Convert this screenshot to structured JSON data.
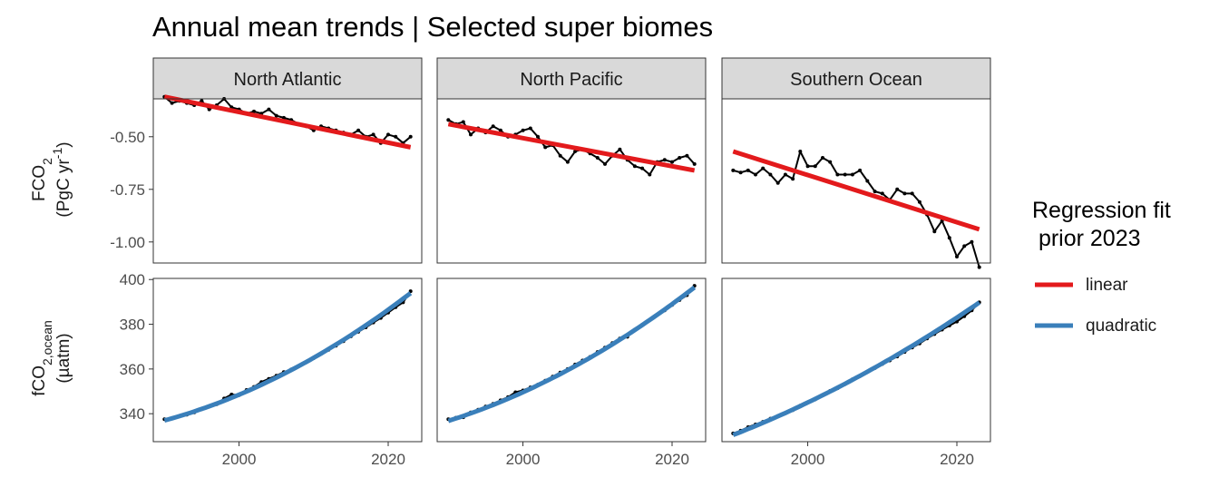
{
  "title": "Annual mean trends | Selected super biomes",
  "legend": {
    "title_line1": "Regression fit",
    "title_line2": " prior 2023",
    "position": "right",
    "items": [
      {
        "label": "linear",
        "color": "#e31a1c"
      },
      {
        "label": "quadratic",
        "color": "#3a7fba"
      }
    ]
  },
  "facets": [
    "North Atlantic",
    "North Pacific",
    "Southern Ocean"
  ],
  "rows": [
    {
      "label_main": "FCO",
      "label_sub": "2",
      "label_unit_pre": "(PgC yr",
      "label_unit_sup": "-1",
      "label_unit_post": ")"
    },
    {
      "label_main": "fCO",
      "label_sub": "2,ocean",
      "label_unit": "(µatm)"
    }
  ],
  "colors": {
    "observed": "#000000",
    "linear": "#e31a1c",
    "quadratic": "#3a7fba",
    "strip_fill": "#d9d9d9",
    "panel_border": "#333333"
  },
  "chart_data": {
    "type": "line",
    "title": "Annual mean trends | Selected super biomes",
    "grid": false,
    "x_ticks": [
      2000,
      2020
    ],
    "x_tick_labels": [
      "2000",
      "2020"
    ],
    "xlim": [
      1988.5,
      2024.5
    ],
    "panels": [
      {
        "row": 0,
        "facet": "North Atlantic",
        "ylim": [
          -1.1,
          -0.32
        ],
        "y_ticks": [
          -0.5,
          -0.75,
          -1.0
        ],
        "y_tick_labels": [
          "-0.50",
          "-0.75",
          "-1.00"
        ],
        "years": [
          1990,
          1991,
          1992,
          1993,
          1994,
          1995,
          1996,
          1997,
          1998,
          1999,
          2000,
          2001,
          2002,
          2003,
          2004,
          2005,
          2006,
          2007,
          2008,
          2009,
          2010,
          2011,
          2012,
          2013,
          2014,
          2015,
          2016,
          2017,
          2018,
          2019,
          2020,
          2021,
          2022,
          2023
        ],
        "observed": [
          -0.31,
          -0.34,
          -0.33,
          -0.34,
          -0.35,
          -0.33,
          -0.37,
          -0.35,
          -0.32,
          -0.36,
          -0.37,
          -0.39,
          -0.38,
          -0.39,
          -0.37,
          -0.4,
          -0.41,
          -0.42,
          -0.44,
          -0.45,
          -0.47,
          -0.45,
          -0.46,
          -0.47,
          -0.48,
          -0.49,
          -0.47,
          -0.5,
          -0.49,
          -0.53,
          -0.49,
          -0.5,
          -0.53,
          -0.5
        ],
        "fit": {
          "kind": "linear",
          "x": [
            1990,
            2023
          ],
          "y": [
            -0.31,
            -0.55
          ]
        }
      },
      {
        "row": 0,
        "facet": "North Pacific",
        "ylim": [
          -1.1,
          -0.32
        ],
        "y_ticks": [
          -0.5,
          -0.75,
          -1.0
        ],
        "y_tick_labels": [
          "-0.50",
          "-0.75",
          "-1.00"
        ],
        "years": [
          1990,
          1991,
          1992,
          1993,
          1994,
          1995,
          1996,
          1997,
          1998,
          1999,
          2000,
          2001,
          2002,
          2003,
          2004,
          2005,
          2006,
          2007,
          2008,
          2009,
          2010,
          2011,
          2012,
          2013,
          2014,
          2015,
          2016,
          2017,
          2018,
          2019,
          2020,
          2021,
          2022,
          2023
        ],
        "observed": [
          -0.42,
          -0.44,
          -0.43,
          -0.49,
          -0.46,
          -0.48,
          -0.45,
          -0.47,
          -0.5,
          -0.49,
          -0.47,
          -0.46,
          -0.5,
          -0.55,
          -0.54,
          -0.59,
          -0.62,
          -0.57,
          -0.56,
          -0.58,
          -0.6,
          -0.63,
          -0.59,
          -0.56,
          -0.61,
          -0.64,
          -0.65,
          -0.68,
          -0.62,
          -0.61,
          -0.62,
          -0.6,
          -0.59,
          -0.63
        ],
        "fit": {
          "kind": "linear",
          "x": [
            1990,
            2023
          ],
          "y": [
            -0.44,
            -0.66
          ]
        }
      },
      {
        "row": 0,
        "facet": "Southern Ocean",
        "ylim": [
          -1.1,
          -0.32
        ],
        "y_ticks": [
          -0.5,
          -0.75,
          -1.0
        ],
        "y_tick_labels": [
          "-0.50",
          "-0.75",
          "-1.00"
        ],
        "years": [
          1990,
          1991,
          1992,
          1993,
          1994,
          1995,
          1996,
          1997,
          1998,
          1999,
          2000,
          2001,
          2002,
          2003,
          2004,
          2005,
          2006,
          2007,
          2008,
          2009,
          2010,
          2011,
          2012,
          2013,
          2014,
          2015,
          2016,
          2017,
          2018,
          2019,
          2020,
          2021,
          2022,
          2023
        ],
        "observed": [
          -0.66,
          -0.67,
          -0.66,
          -0.68,
          -0.65,
          -0.68,
          -0.72,
          -0.68,
          -0.7,
          -0.57,
          -0.64,
          -0.64,
          -0.6,
          -0.62,
          -0.68,
          -0.68,
          -0.68,
          -0.66,
          -0.71,
          -0.76,
          -0.77,
          -0.8,
          -0.75,
          -0.77,
          -0.77,
          -0.81,
          -0.87,
          -0.95,
          -0.9,
          -0.98,
          -1.07,
          -1.02,
          -1.0,
          -1.12
        ],
        "fit": {
          "kind": "linear",
          "x": [
            1990,
            2023
          ],
          "y": [
            -0.57,
            -0.94
          ]
        }
      },
      {
        "row": 1,
        "facet": "North Atlantic",
        "ylim": [
          327.5,
          400.5
        ],
        "y_ticks": [
          340,
          360,
          380,
          400
        ],
        "y_tick_labels": [
          "340",
          "360",
          "380",
          "400"
        ],
        "years": [
          1990,
          1991,
          1992,
          1993,
          1994,
          1995,
          1996,
          1997,
          1998,
          1999,
          2000,
          2001,
          2002,
          2003,
          2004,
          2005,
          2006,
          2007,
          2008,
          2009,
          2010,
          2011,
          2012,
          2013,
          2014,
          2015,
          2016,
          2017,
          2018,
          2019,
          2020,
          2021,
          2022,
          2023
        ],
        "observed": [
          337.5,
          338.0,
          338.8,
          339.6,
          340.6,
          342.0,
          343.2,
          344.2,
          346.8,
          348.6,
          348.3,
          350.6,
          352.0,
          354.2,
          355.6,
          357.0,
          358.6,
          359.8,
          361.4,
          363.0,
          364.8,
          366.8,
          368.6,
          370.4,
          372.4,
          374.6,
          376.6,
          378.6,
          380.8,
          382.8,
          385.2,
          387.6,
          389.8,
          394.8
        ],
        "fit": {
          "kind": "quadratic",
          "coef": [
            337.0,
            0.9,
            0.025
          ],
          "x0": 1990
        }
      },
      {
        "row": 1,
        "facet": "North Pacific",
        "ylim": [
          327.5,
          400.5
        ],
        "y_ticks": [
          340,
          360,
          380,
          400
        ],
        "y_tick_labels": [
          "340",
          "360",
          "380",
          "400"
        ],
        "years": [
          1990,
          1991,
          1992,
          1993,
          1994,
          1995,
          1996,
          1997,
          1998,
          1999,
          2000,
          2001,
          2002,
          2003,
          2004,
          2005,
          2006,
          2007,
          2008,
          2009,
          2010,
          2011,
          2012,
          2013,
          2014,
          2015,
          2016,
          2017,
          2018,
          2019,
          2020,
          2021,
          2022,
          2023
        ],
        "observed": [
          337.5,
          338.2,
          338.4,
          340.6,
          341.8,
          343.2,
          344.4,
          346.0,
          347.4,
          349.6,
          350.4,
          351.8,
          353.0,
          354.8,
          356.6,
          358.4,
          360.0,
          362.0,
          363.8,
          365.4,
          367.6,
          369.6,
          371.6,
          373.6,
          374.4,
          377.6,
          379.8,
          382.0,
          384.2,
          386.2,
          388.6,
          390.8,
          393.0,
          397.2
        ],
        "fit": {
          "kind": "quadratic",
          "coef": [
            336.8,
            1.05,
            0.023
          ],
          "x0": 1990
        }
      },
      {
        "row": 1,
        "facet": "Southern Ocean",
        "ylim": [
          327.5,
          400.5
        ],
        "y_ticks": [
          340,
          360,
          380,
          400
        ],
        "y_tick_labels": [
          "340",
          "360",
          "380",
          "400"
        ],
        "years": [
          1990,
          1991,
          1992,
          1993,
          1994,
          1995,
          1996,
          1997,
          1998,
          1999,
          2000,
          2001,
          2002,
          2003,
          2004,
          2005,
          2006,
          2007,
          2008,
          2009,
          2010,
          2011,
          2012,
          2013,
          2014,
          2015,
          2016,
          2017,
          2018,
          2019,
          2020,
          2021,
          2022,
          2023
        ],
        "observed": [
          331.2,
          332.4,
          334.0,
          335.2,
          336.4,
          337.8,
          339.0,
          340.4,
          341.6,
          343.6,
          345.0,
          346.4,
          348.2,
          350.2,
          351.4,
          353.2,
          355.4,
          356.8,
          358.8,
          360.4,
          362.2,
          363.8,
          365.6,
          367.6,
          369.6,
          371.4,
          373.6,
          375.6,
          377.6,
          379.4,
          381.2,
          383.6,
          386.2,
          389.8
        ],
        "fit": {
          "kind": "quadratic",
          "coef": [
            330.5,
            1.3,
            0.015
          ],
          "x0": 1990
        }
      }
    ]
  }
}
